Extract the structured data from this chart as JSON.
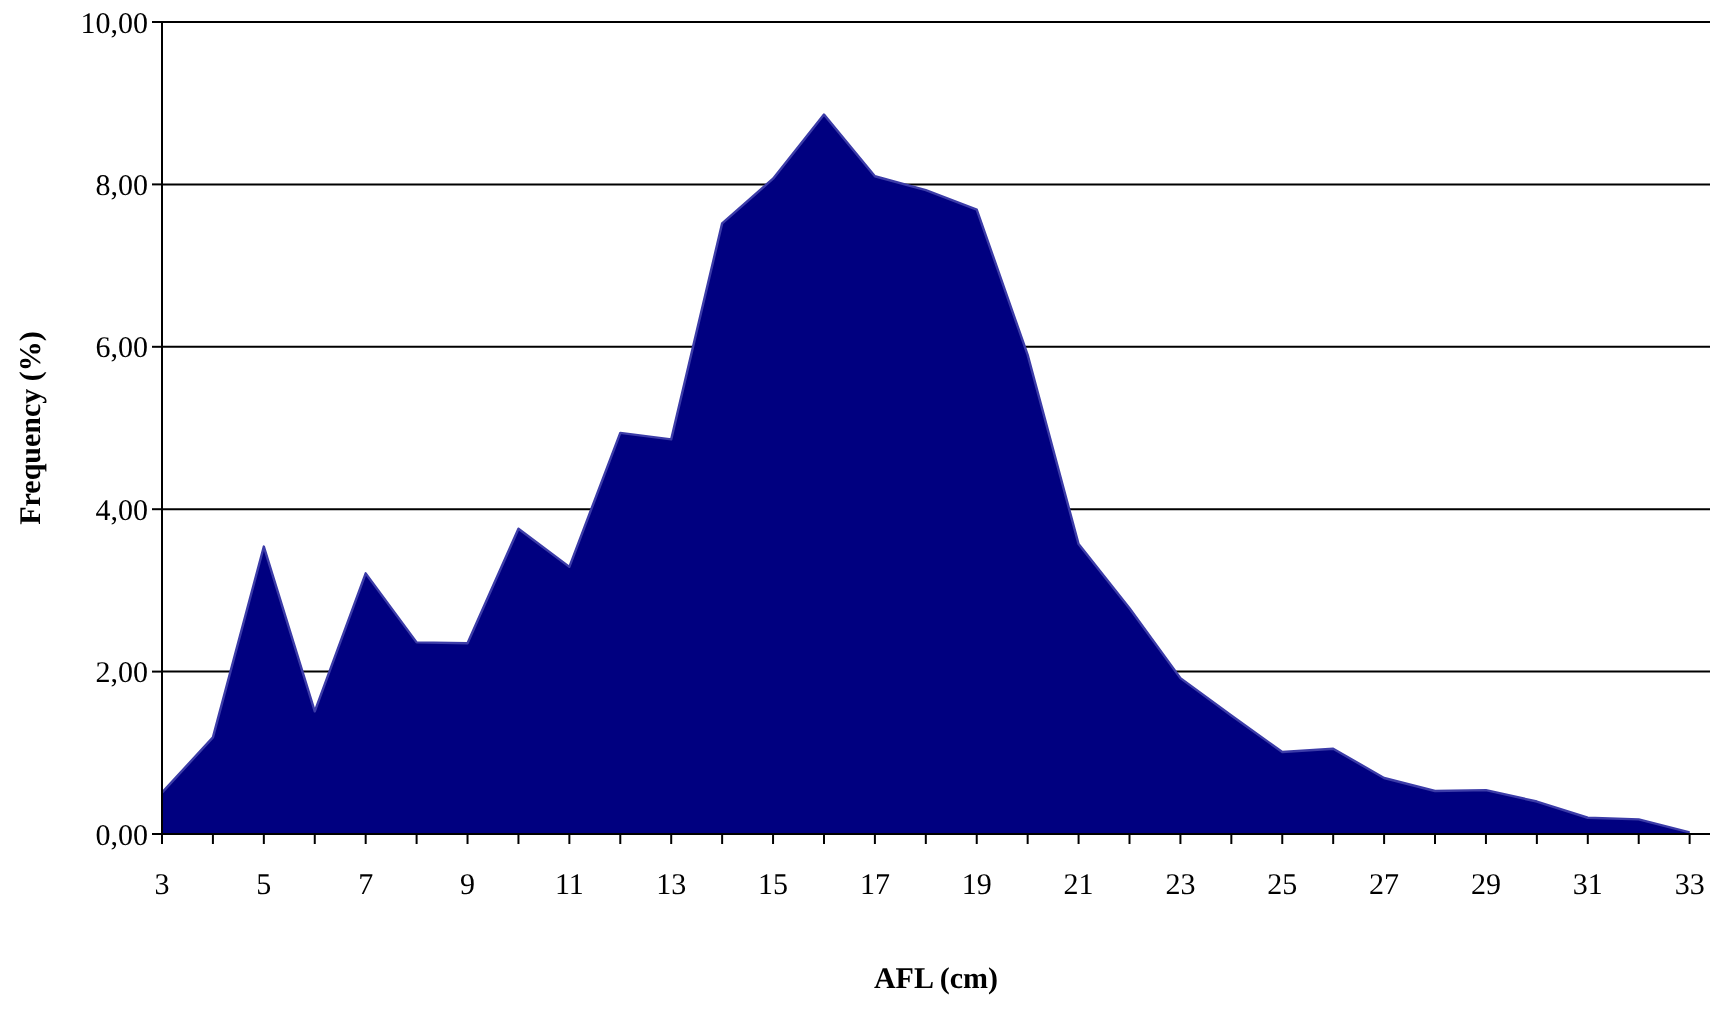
{
  "chart_data": {
    "type": "area",
    "xlabel": "AFL (cm)",
    "ylabel": "Frequency (%)",
    "categories": [
      "3",
      null,
      "5",
      null,
      "7",
      null,
      "9",
      null,
      "11",
      null,
      "13",
      null,
      "15",
      null,
      "17",
      null,
      "19",
      null,
      "21",
      null,
      "23",
      null,
      "25",
      null,
      "27",
      null,
      "29",
      null,
      "31",
      null,
      "33"
    ],
    "series": [
      {
        "color": "#000080",
        "values": [
          0.51,
          1.19,
          3.54,
          1.51,
          3.21,
          2.36,
          2.35,
          3.76,
          3.29,
          4.94,
          4.86,
          7.52,
          8.07,
          8.86,
          8.1,
          7.93,
          7.69,
          5.9,
          3.57,
          2.78,
          1.92,
          1.46,
          1.01,
          1.05,
          0.69,
          0.53,
          0.54,
          0.4,
          0.2,
          0.18,
          0.02
        ]
      }
    ],
    "ylim": [
      0,
      10
    ],
    "yticks": [
      {
        "value": 0,
        "label": "0,00"
      },
      {
        "value": 2,
        "label": "2,00"
      },
      {
        "value": 4,
        "label": "4,00"
      },
      {
        "value": 6,
        "label": "6,00"
      },
      {
        "value": 8,
        "label": "8,00"
      },
      {
        "value": 10,
        "label": "10,00"
      }
    ],
    "grid": "y"
  }
}
